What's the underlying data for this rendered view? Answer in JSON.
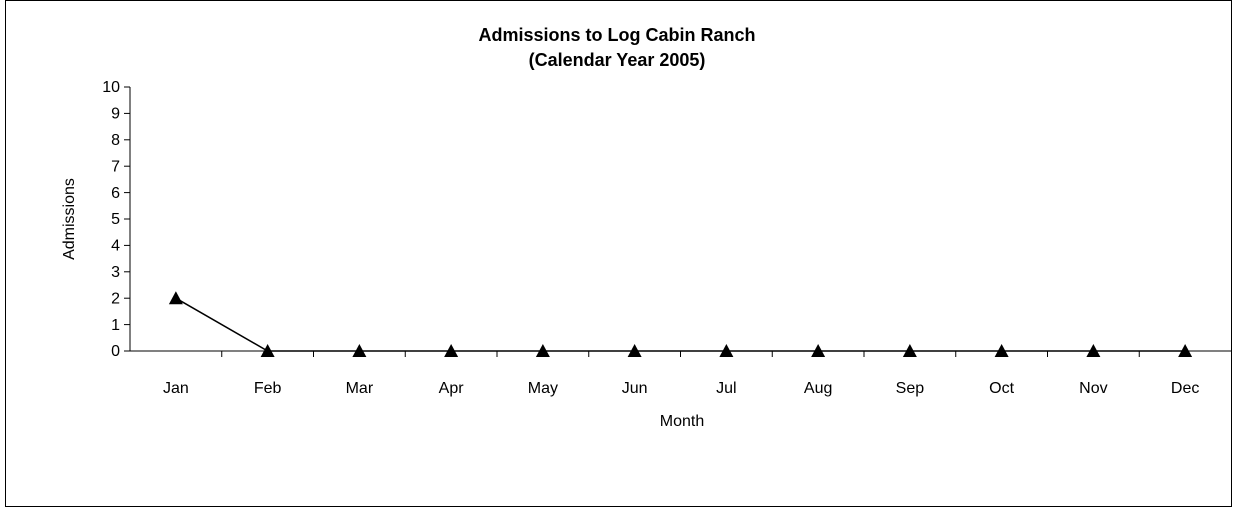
{
  "chart_data": {
    "type": "line",
    "title": "Admissions to Log Cabin Ranch",
    "subtitle": "(Calendar Year 2005)",
    "x_label": "Month",
    "y_label": "Admissions",
    "categories": [
      "Jan",
      "Feb",
      "Mar",
      "Apr",
      "May",
      "Jun",
      "Jul",
      "Aug",
      "Sep",
      "Oct",
      "Nov",
      "Dec"
    ],
    "values": [
      2,
      0,
      0,
      0,
      0,
      0,
      0,
      0,
      0,
      0,
      0,
      0
    ],
    "color": "#000000",
    "marker": "triangle",
    "ylim": [
      0,
      10
    ],
    "yticks": [
      0,
      1,
      2,
      3,
      4,
      5,
      6,
      7,
      8,
      9,
      10
    ],
    "grid": false
  }
}
